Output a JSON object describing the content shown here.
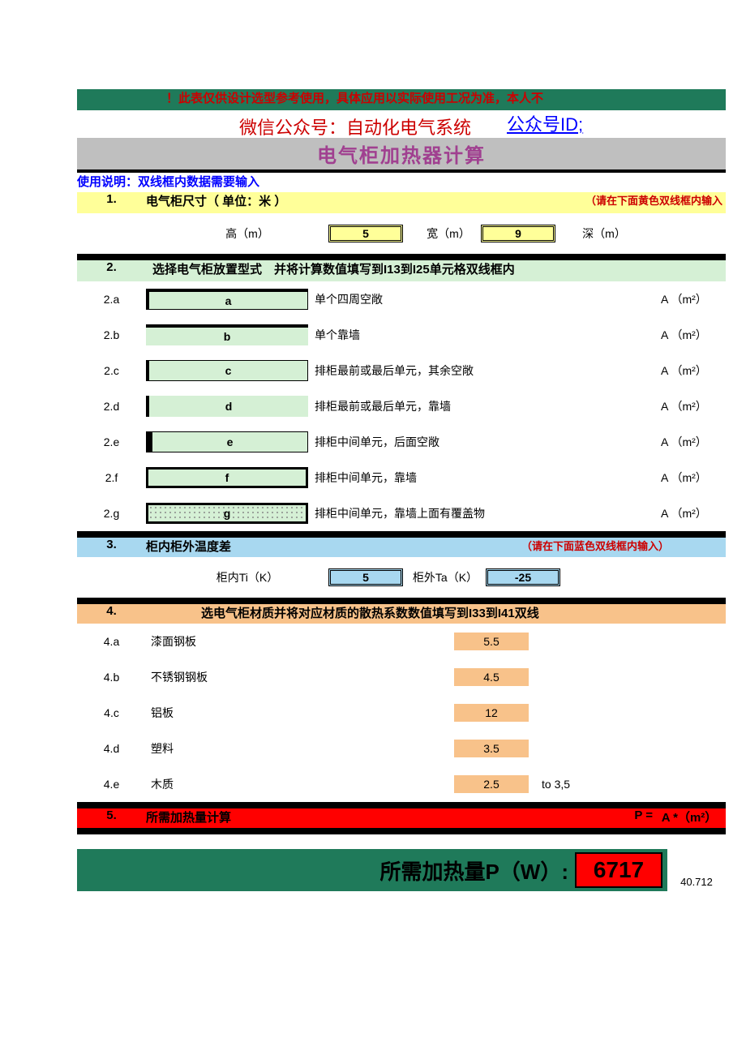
{
  "header": {
    "warning": "！此表仅供设计选型参考使用，具体应用以实际使用工况为准，本人不",
    "wechat_label": "微信公众号：自动化电气系统",
    "wechat_id_label": "公众号ID;",
    "title": "电气柜加热器计算",
    "usage_note": "使用说明：双线框内数据需要输入",
    "background_green": "#1f7a5a",
    "title_color": "#a04090"
  },
  "section1": {
    "num": "1.",
    "title": "电气柜尺寸（ 单位：米 ）",
    "hint": "（请在下面黄色双线框内输入",
    "labels": {
      "h": "高（m）",
      "w": "宽（m）",
      "d": "深（m）"
    },
    "values": {
      "h": "5",
      "w": "9"
    },
    "bar_color": "#ffff99"
  },
  "section2": {
    "num": "2.",
    "title": "选择电气柜放置型式　并将计算数值填写到I13到I25单元格双线框内",
    "bar_color": "#d5f0d5",
    "unit": "A （m²）",
    "options": [
      {
        "idx": "2.a",
        "code": "a",
        "desc": "单个四周空敞",
        "border": "opt-box-b1"
      },
      {
        "idx": "2.b",
        "code": "b",
        "desc": "单个靠墙",
        "border": "opt-box-b2"
      },
      {
        "idx": "2.c",
        "code": "c",
        "desc": "排柜最前或最后单元，其余空敞",
        "border": "opt-box-b3"
      },
      {
        "idx": "2.d",
        "code": "d",
        "desc": "排柜最前或最后单元，靠墙",
        "border": "opt-box-b4"
      },
      {
        "idx": "2.e",
        "code": "e",
        "desc": "排柜中间单元，后面空敞",
        "border": "opt-box-b5"
      },
      {
        "idx": "2.f",
        "code": "f",
        "desc": "排柜中间单元，靠墙",
        "border": "opt-box-b6"
      },
      {
        "idx": "2.g",
        "code": "g",
        "desc": "排柜中间单元，靠墙上面有覆盖物",
        "border": "opt-box-b7"
      }
    ]
  },
  "section3": {
    "num": "3.",
    "title": "柜内柜外温度差",
    "hint": "（请在下面蓝色双线框内输入）",
    "bar_color": "#a8d8f0",
    "labels": {
      "ti": "柜内Ti（K）",
      "ta": "柜外Ta（K）"
    },
    "values": {
      "ti": "5",
      "ta": "-25"
    }
  },
  "section4": {
    "num": "4.",
    "title": "选电气柜材质并将对应材质的散热系数数值填写到I33到I41双线",
    "bar_color": "#f8c28a",
    "materials": [
      {
        "idx": "4.a",
        "name": "漆面钢板",
        "val": "5.5",
        "extra": ""
      },
      {
        "idx": "4.b",
        "name": "不锈钢钢板",
        "val": "4.5",
        "extra": ""
      },
      {
        "idx": "4.c",
        "name": "铝板",
        "val": "12",
        "extra": ""
      },
      {
        "idx": "4.d",
        "name": "塑料",
        "val": "3.5",
        "extra": ""
      },
      {
        "idx": "4.e",
        "name": "木质",
        "val": "2.5",
        "extra": "to 3,5"
      }
    ]
  },
  "section5": {
    "num": "5.",
    "title": "所需加热量计算",
    "formula_p": "P =",
    "formula_a": "A *（m²）",
    "bar_color": "#ff0000"
  },
  "result": {
    "label": "所需加热量P（W）:",
    "value": "6717",
    "extra": "40.712",
    "box_color": "#ff0000",
    "bg_color": "#1f7a5a"
  }
}
